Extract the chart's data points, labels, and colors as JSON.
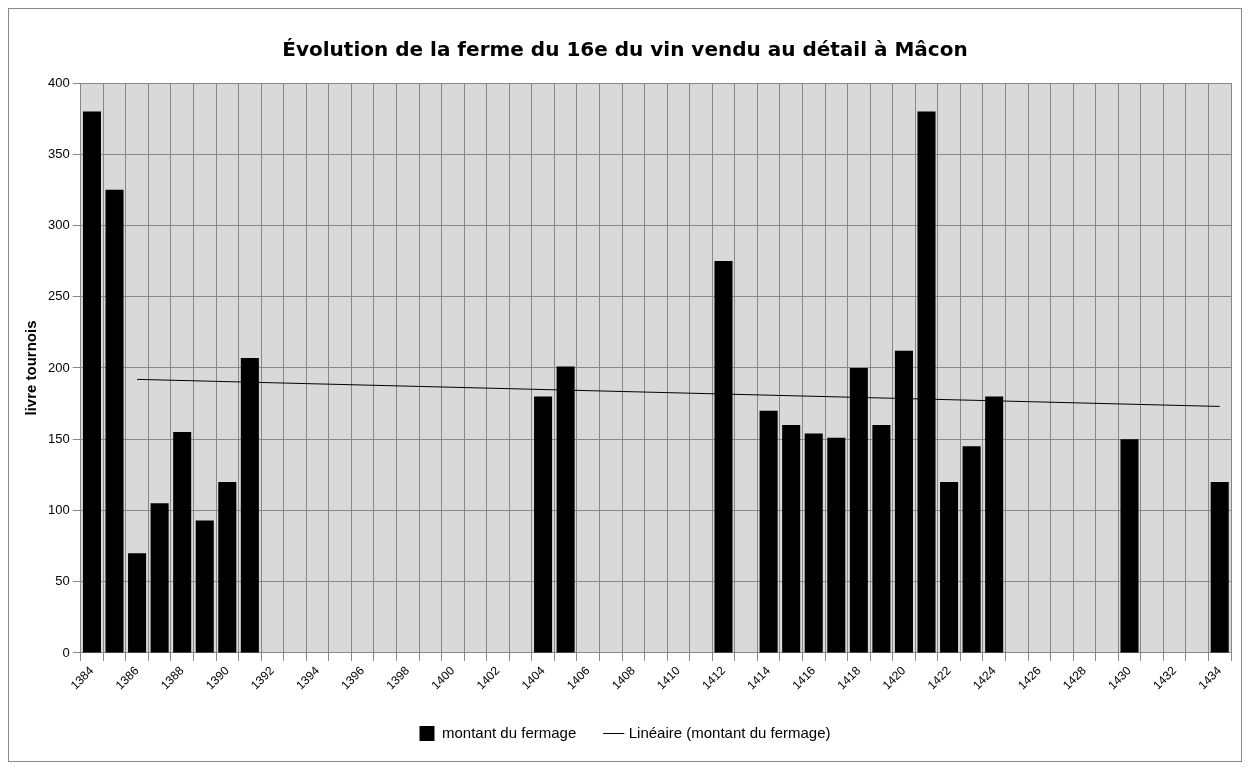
{
  "chart_data": {
    "type": "bar",
    "title": "Évolution de la ferme du 16e du vin vendu au détail à Mâcon",
    "ylabel": "livre tournois",
    "categories": [
      "1384",
      null,
      "1386",
      null,
      "1388",
      null,
      "1390",
      null,
      "1392",
      null,
      "1394",
      null,
      "1396",
      null,
      "1398",
      null,
      "1400",
      null,
      "1402",
      null,
      "1404",
      null,
      "1406",
      null,
      "1408",
      null,
      "1410",
      null,
      "1412",
      null,
      "1414",
      null,
      "1416",
      null,
      "1418",
      null,
      "1420",
      null,
      "1422",
      null,
      "1424",
      null,
      "1426",
      null,
      "1428",
      null,
      "1430",
      null,
      "1432",
      null,
      "1434"
    ],
    "series": [
      {
        "name": "montant du fermage",
        "color": "#000000",
        "values": [
          380,
          325,
          70,
          105,
          155,
          93,
          120,
          207,
          null,
          null,
          null,
          null,
          null,
          null,
          null,
          null,
          null,
          null,
          null,
          null,
          180,
          201,
          null,
          null,
          null,
          null,
          null,
          null,
          275,
          null,
          170,
          160,
          154,
          151,
          200,
          160,
          212,
          380,
          120,
          145,
          180,
          null,
          null,
          null,
          null,
          null,
          150,
          null,
          null,
          null,
          120
        ]
      },
      {
        "name": "Linéaire (montant du fermage)",
        "type": "line",
        "color": "#000000",
        "values": [
          null,
          null,
          192,
          null,
          null,
          null,
          null,
          null,
          null,
          null,
          null,
          null,
          null,
          null,
          null,
          null,
          null,
          null,
          null,
          null,
          null,
          null,
          null,
          null,
          null,
          null,
          null,
          null,
          null,
          null,
          null,
          null,
          null,
          null,
          null,
          null,
          null,
          null,
          null,
          null,
          null,
          null,
          null,
          null,
          null,
          null,
          null,
          null,
          null,
          null,
          173
        ]
      }
    ],
    "ylim": [
      0,
      400
    ],
    "yticks": [
      0,
      50,
      100,
      150,
      200,
      250,
      300,
      350,
      400
    ],
    "grid": true,
    "legend": "bottom"
  }
}
